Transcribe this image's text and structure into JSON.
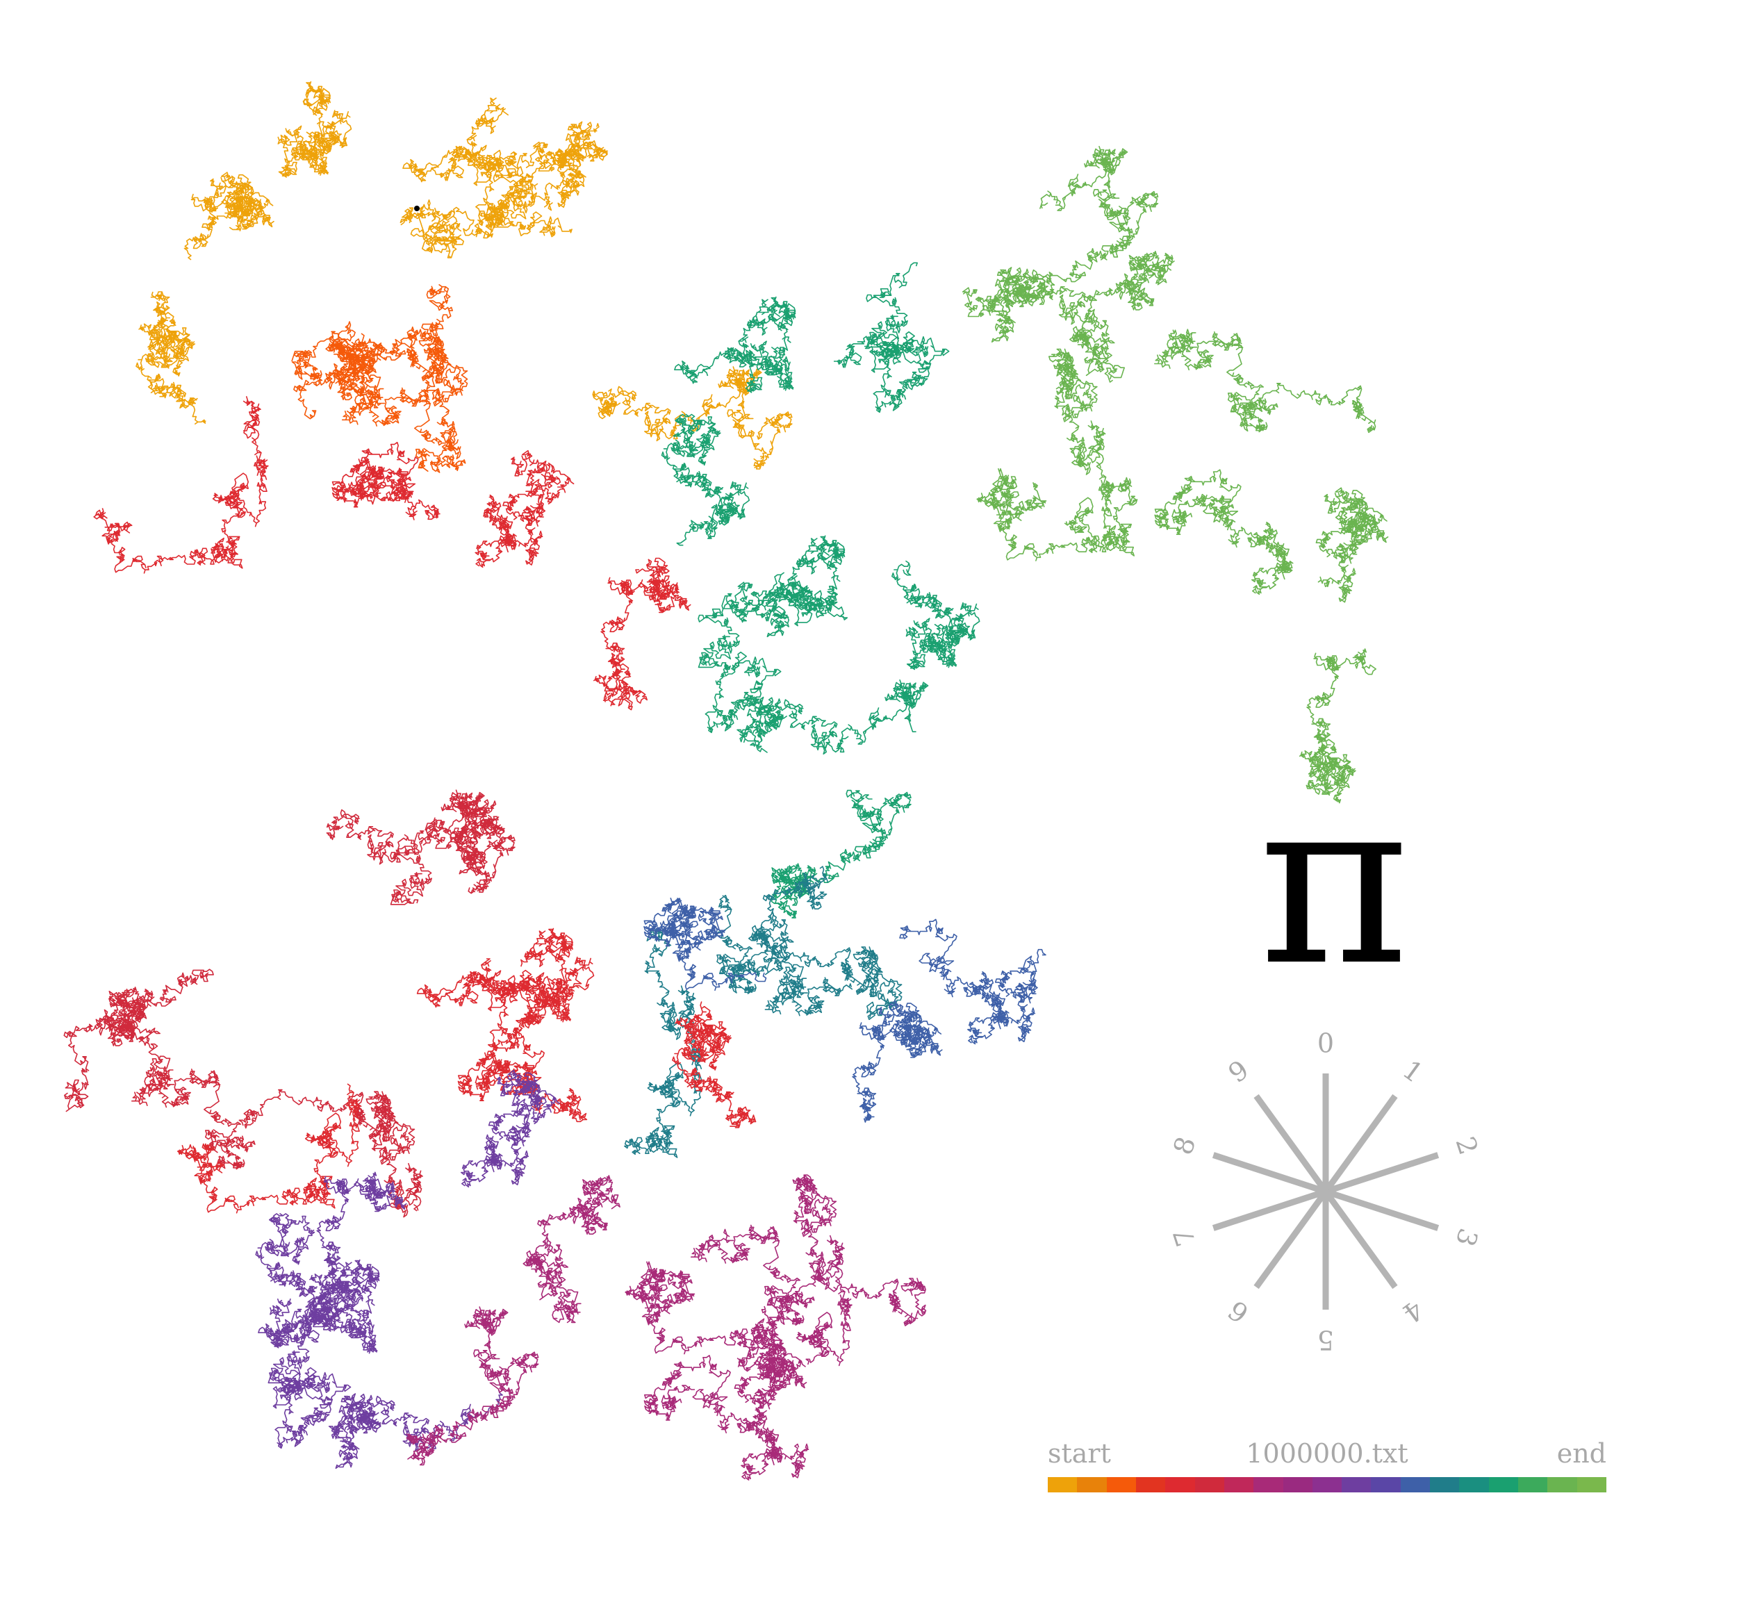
{
  "symbol": "π",
  "legend": {
    "start_label": "start",
    "file_label": "1000000.txt",
    "end_label": "end",
    "gradient": [
      "#eea20a",
      "#e8820a",
      "#f55a0a",
      "#e23420",
      "#de2a30",
      "#d02a3c",
      "#c0285a",
      "#a82a78",
      "#9a2a80",
      "#8c3090",
      "#6e3ea0",
      "#5a46a6",
      "#3e60a8",
      "#207d8a",
      "#1a8f80",
      "#1aa070",
      "#3caa5c",
      "#6ab450",
      "#7ab84c"
    ]
  },
  "compass": {
    "digits": [
      "0",
      "1",
      "2",
      "3",
      "4",
      "5",
      "6",
      "7",
      "8",
      "9"
    ],
    "line_color": "#b4b4b4",
    "text_color": "#a8a8a8"
  },
  "walk": {
    "colors": [
      "#eea20a",
      "#f55a0a",
      "#de2a30",
      "#1aa070",
      "#6ab450",
      "#1aa070",
      "#207d8a",
      "#3e60a8",
      "#de2a30",
      "#d02a3c",
      "#6e3ea0",
      "#a82a78"
    ]
  }
}
